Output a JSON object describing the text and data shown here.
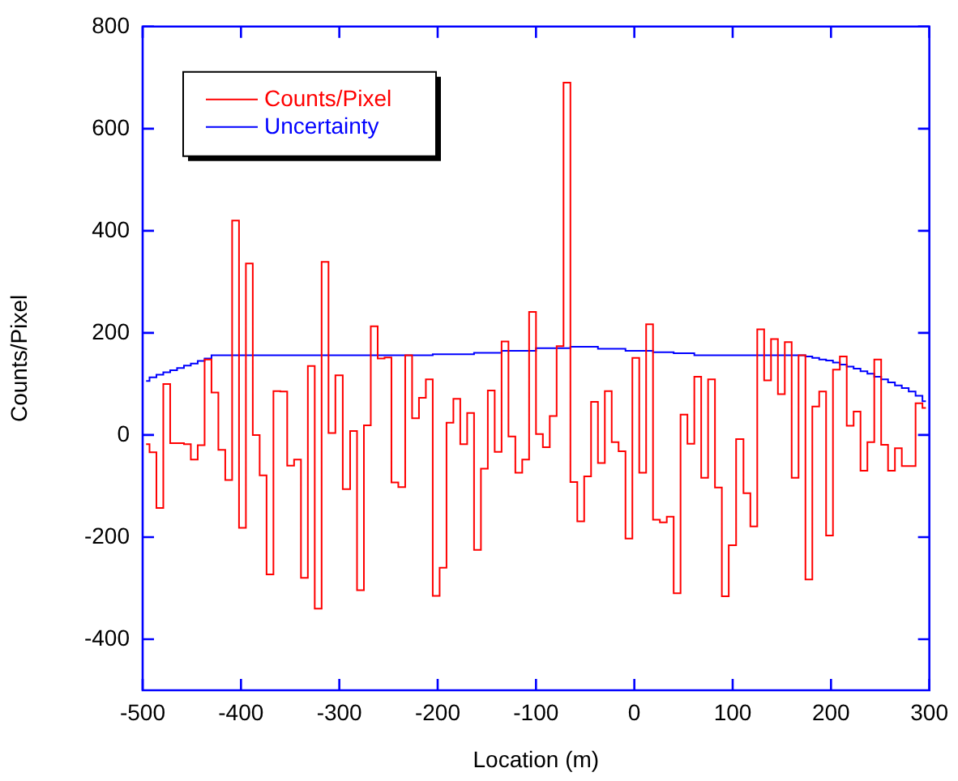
{
  "chart_data": {
    "type": "step",
    "xlabel": "Location (m)",
    "ylabel": "Counts/Pixel",
    "x": [
      -496.5,
      -489.5,
      -482.5,
      -475.5,
      -468.5,
      -461.5,
      -454.5,
      -447.5,
      -440.5,
      -433.5,
      -426.5,
      -419.5,
      -412.5,
      -405.5,
      -398.5,
      -391.5,
      -384.5,
      -377.5,
      -370.5,
      -363.5,
      -356.5,
      -349.5,
      -342.5,
      -335.5,
      -328.5,
      -321.5,
      -314.5,
      -307.5,
      -300.5,
      -292.5,
      -285.5,
      -278.5,
      -271.5,
      -264.5,
      -257.5,
      -250.5,
      -243.5,
      -236.5,
      -229.5,
      -222.5,
      -215.5,
      -208.5,
      -201.5,
      -194.5,
      -187.5,
      -180.5,
      -173.5,
      -166.5,
      -159.5,
      -152.5,
      -145.5,
      -138.5,
      -131.5,
      -124.5,
      -117.5,
      -110.5,
      -103.5,
      -96.5,
      -89.5,
      -82.5,
      -75.5,
      -68.5,
      -61.5,
      -54.5,
      -47.5,
      -40.5,
      -33.5,
      -26.5,
      -19.5,
      -12.5,
      -5.5,
      1.5,
      8.5,
      15.5,
      22.5,
      29.5,
      36.5,
      43.5,
      50.5,
      57.5,
      64.5,
      71.5,
      78.5,
      85.5,
      92.5,
      99.5,
      107.5,
      114.5,
      121.5,
      128.5,
      135.5,
      142.5,
      149.5,
      156.5,
      163.5,
      170.5,
      177.5,
      184.5,
      191.5,
      198.5,
      205.5,
      212.5,
      219.5,
      226.5,
      233.5,
      240.5,
      247.5,
      254.5,
      261.5,
      268.5,
      275.5,
      282.5,
      289.5,
      296.5
    ],
    "xlim": [
      -500,
      300
    ],
    "xticks": [
      -500,
      -400,
      -300,
      -200,
      -100,
      0,
      100,
      200,
      300
    ],
    "ylim": [
      -500,
      800
    ],
    "yticks": [
      -400,
      -200,
      0,
      200,
      400,
      600,
      800
    ],
    "legend": "top left",
    "series": [
      {
        "name": "Counts/Pixel",
        "color": "#ff0000",
        "values": [
          -18,
          -34,
          -143,
          100,
          -16,
          -16,
          -18,
          -48,
          -20,
          148,
          83,
          -29,
          -88,
          420,
          -182,
          336,
          0,
          -79,
          -273,
          86,
          85,
          -60,
          -48,
          -280,
          135,
          -340,
          339,
          4,
          117,
          -106,
          8,
          -304,
          19,
          213,
          150,
          152,
          -93,
          -102,
          156,
          33,
          73,
          109,
          -315,
          -260,
          24,
          71,
          -18,
          43,
          -225,
          -66,
          87,
          -33,
          183,
          -3,
          -74,
          -48,
          241,
          2,
          -24,
          37,
          174,
          690,
          -92,
          -169,
          -81,
          65,
          -55,
          86,
          -14,
          -32,
          -203,
          151,
          -74,
          217,
          -166,
          -171,
          -160,
          -310,
          40,
          -17,
          114,
          -84,
          109,
          -103,
          -316,
          -216,
          -8,
          -114,
          -179,
          207,
          107,
          188,
          80,
          182,
          -84,
          156,
          -283,
          56,
          85,
          -197,
          128,
          154,
          18,
          46,
          -70,
          -14,
          148,
          -19,
          -70,
          -26,
          -61,
          -61,
          62,
          53
        ]
      },
      {
        "name": "Uncertainty",
        "color": "#0000ff",
        "values": [
          106,
          113,
          118,
          123,
          127,
          131,
          136,
          140,
          145,
          150,
          156,
          156,
          156,
          156,
          156,
          156,
          156,
          156,
          156,
          156,
          156,
          156,
          156,
          156,
          156,
          156,
          156,
          156,
          156,
          156,
          156,
          156,
          156,
          156,
          156,
          156,
          156,
          156,
          156,
          156,
          156,
          156,
          158,
          158,
          158,
          158,
          158,
          158,
          161,
          161,
          161,
          161,
          165,
          165,
          165,
          165,
          165,
          170,
          170,
          170,
          170,
          170,
          173,
          173,
          173,
          173,
          169,
          169,
          169,
          169,
          165,
          165,
          165,
          165,
          162,
          162,
          162,
          160,
          160,
          160,
          156,
          156,
          156,
          156,
          156,
          156,
          156,
          156,
          156,
          156,
          156,
          156,
          156,
          156,
          156,
          156,
          154,
          151,
          148,
          146,
          142,
          138,
          134,
          130,
          125,
          120,
          114,
          109,
          103,
          97,
          92,
          85,
          77,
          66
        ]
      }
    ]
  }
}
